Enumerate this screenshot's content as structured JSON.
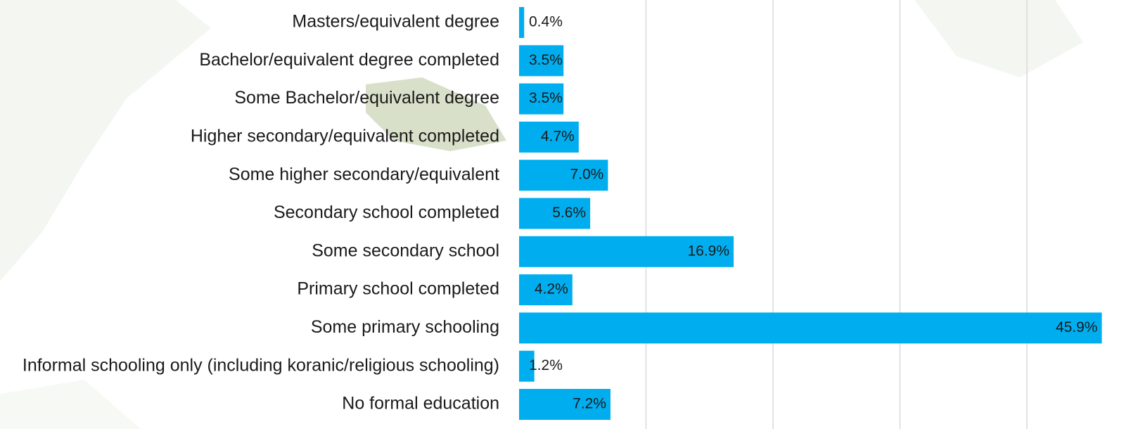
{
  "chart_data": {
    "type": "bar",
    "orientation": "horizontal",
    "categories": [
      "Masters/equivalent degree",
      "Bachelor/equivalent degree completed",
      "Some Bachelor/equivalent degree",
      "Higher secondary/equivalent completed",
      "Some higher secondary/equivalent",
      "Secondary school completed",
      "Some secondary school",
      "Primary school completed",
      "Some primary schooling",
      "Informal schooling only (including koranic/religious  schooling)",
      "No formal education"
    ],
    "values": [
      0.4,
      3.5,
      3.5,
      4.7,
      7.0,
      5.6,
      16.9,
      4.2,
      45.9,
      1.2,
      7.2
    ],
    "value_labels": [
      "0.4%",
      "3.5%",
      "3.5%",
      "4.7%",
      "7.0%",
      "5.6%",
      "16.9%",
      "4.2%",
      "45.9%",
      "1.2%",
      "7.2%"
    ],
    "color": "#00aeef",
    "xlim": [
      0,
      48
    ],
    "xticks": [
      10,
      20,
      30,
      40
    ],
    "grid": true
  }
}
